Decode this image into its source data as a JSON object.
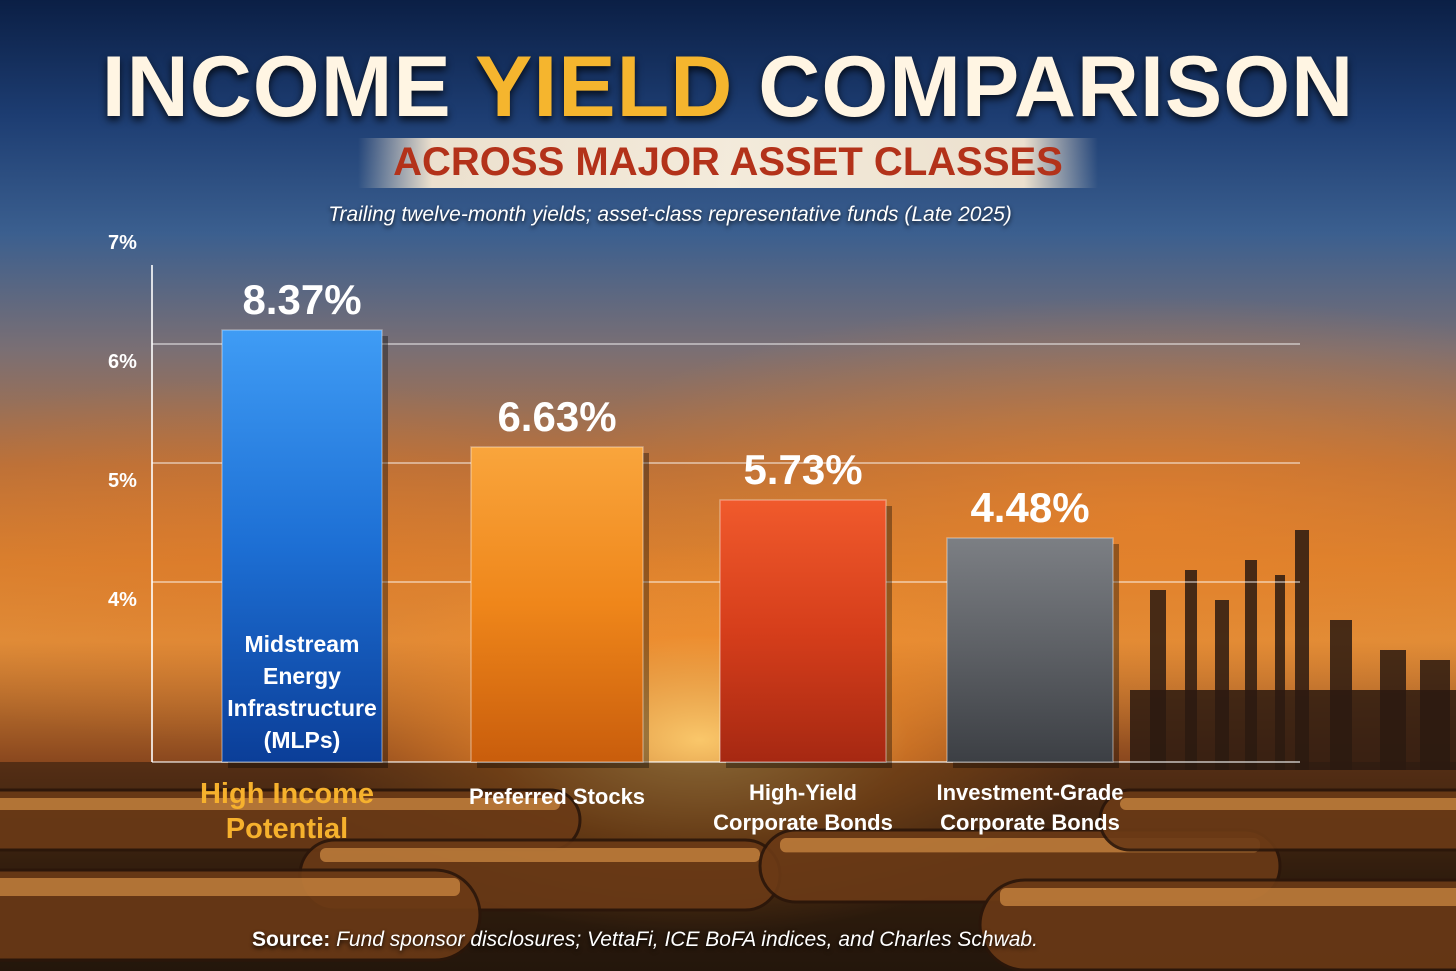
{
  "title": {
    "part1": "INCOME ",
    "highlight": "YIELD",
    "part2": " COMPARISON"
  },
  "subtitle": "ACROSS MAJOR ASSET CLASSES",
  "note": "Trailing twelve-month yields; asset-class representative funds (Late 2025)",
  "source": {
    "label": "Source:",
    "text": " Fund sponsor disclosures; VettaFi, ICE BoFA indices, and Charles Schwab."
  },
  "highlight_tag": [
    "High Income",
    "Potential"
  ],
  "colors": {
    "accent": "#f5b52e",
    "subtitle": "#b3321a",
    "blue": "#1e73d8",
    "orange": "#f08a1c",
    "red": "#d8401c",
    "gray": "#5c5f64"
  },
  "chart_data": {
    "type": "bar",
    "title": "INCOME YIELD COMPARISON",
    "categories": [
      [
        "Midstream",
        "Energy",
        "Infrastructure",
        "(MLPs)"
      ],
      [
        "Preferred Stocks"
      ],
      [
        "High-Yield",
        "Corporate Bonds"
      ],
      [
        "Investment-Grade",
        "Corporate Bonds"
      ]
    ],
    "values": [
      8.37,
      6.63,
      5.73,
      4.48
    ],
    "value_labels": [
      "8.37%",
      "6.63%",
      "5.73%",
      "4.48%"
    ],
    "bar_colors": [
      "blue",
      "orange",
      "red",
      "gray"
    ],
    "yticks": [
      "7%",
      "6%",
      "5%",
      "4%"
    ],
    "grid": true,
    "xlabel": "",
    "ylabel": ""
  }
}
